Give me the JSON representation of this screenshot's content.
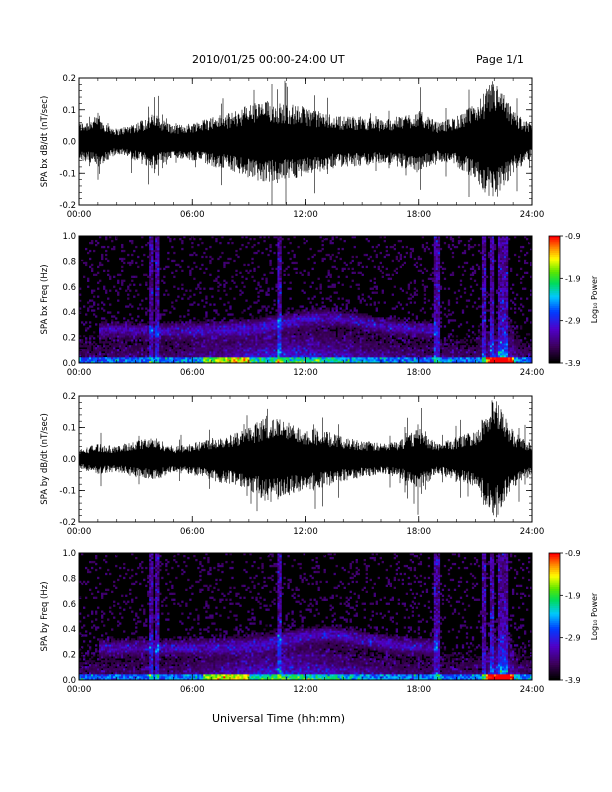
{
  "header": {
    "title": "2010/01/25  00:00-24:00 UT",
    "page": "Page 1/1"
  },
  "footer": {
    "xlabel": "Universal Time (hh:mm)"
  },
  "colorbar": {
    "label": "Log₁₀ Power",
    "ticks": [
      "-0.9",
      "-1.9",
      "-2.9",
      "-3.9"
    ]
  },
  "chart_data": [
    {
      "type": "line",
      "name": "panel-bx-waveform",
      "ylabel": "SPA bx dB/dt (nT/sec)",
      "xlabel": "",
      "xlim": [
        0,
        24
      ],
      "ylim": [
        -0.2,
        0.2
      ],
      "x_ticks": [
        "00:00",
        "06:00",
        "12:00",
        "18:00",
        "24:00"
      ],
      "y_ticks": [
        "0.2",
        "0.1",
        "0.0",
        "-0.1",
        "-0.2"
      ],
      "amplitude_envelope": {
        "hours": [
          0,
          1,
          2,
          3,
          4,
          5,
          6,
          7,
          8,
          9,
          10,
          11,
          12,
          13,
          14,
          15,
          16,
          17,
          18,
          19,
          20,
          21,
          22,
          23,
          24
        ],
        "peak_dBdt": [
          0.06,
          0.08,
          0.04,
          0.06,
          0.09,
          0.05,
          0.06,
          0.08,
          0.09,
          0.12,
          0.13,
          0.12,
          0.11,
          0.09,
          0.08,
          0.08,
          0.07,
          0.08,
          0.1,
          0.06,
          0.08,
          0.12,
          0.2,
          0.1,
          0.05
        ]
      }
    },
    {
      "type": "heatmap",
      "name": "panel-bx-spectrogram",
      "ylabel": "SPA bx Freq (Hz)",
      "xlim": [
        0,
        24
      ],
      "ylim": [
        0,
        1.0
      ],
      "x_ticks": [
        "00:00",
        "06:00",
        "12:00",
        "18:00",
        "24:00"
      ],
      "y_ticks": [
        "1.0",
        "0.8",
        "0.6",
        "0.4",
        "0.2",
        "0.0"
      ],
      "zlim": [
        -3.9,
        -0.9
      ]
    },
    {
      "type": "line",
      "name": "panel-by-waveform",
      "ylabel": "SPA by dB/dt (nT/sec)",
      "xlabel": "",
      "xlim": [
        0,
        24
      ],
      "ylim": [
        -0.2,
        0.2
      ],
      "x_ticks": [
        "00:00",
        "06:00",
        "12:00",
        "18:00",
        "24:00"
      ],
      "y_ticks": [
        "0.2",
        "0.1",
        "0.0",
        "-0.1",
        "-0.2"
      ],
      "amplitude_envelope": {
        "hours": [
          0,
          1,
          2,
          3,
          4,
          5,
          6,
          7,
          8,
          9,
          10,
          11,
          12,
          13,
          14,
          15,
          16,
          17,
          18,
          19,
          20,
          21,
          22,
          23,
          24
        ],
        "peak_dBdt": [
          0.03,
          0.05,
          0.04,
          0.06,
          0.07,
          0.04,
          0.05,
          0.07,
          0.08,
          0.1,
          0.14,
          0.12,
          0.1,
          0.09,
          0.07,
          0.06,
          0.05,
          0.06,
          0.1,
          0.05,
          0.07,
          0.09,
          0.2,
          0.09,
          0.05
        ]
      }
    },
    {
      "type": "heatmap",
      "name": "panel-by-spectrogram",
      "ylabel": "SPA by Freq (Hz)",
      "xlim": [
        0,
        24
      ],
      "ylim": [
        0,
        1.0
      ],
      "x_ticks": [
        "00:00",
        "06:00",
        "12:00",
        "18:00",
        "24:00"
      ],
      "y_ticks": [
        "1.0",
        "0.8",
        "0.6",
        "0.4",
        "0.2",
        "0.0"
      ],
      "zlim": [
        -3.9,
        -0.9
      ]
    }
  ]
}
